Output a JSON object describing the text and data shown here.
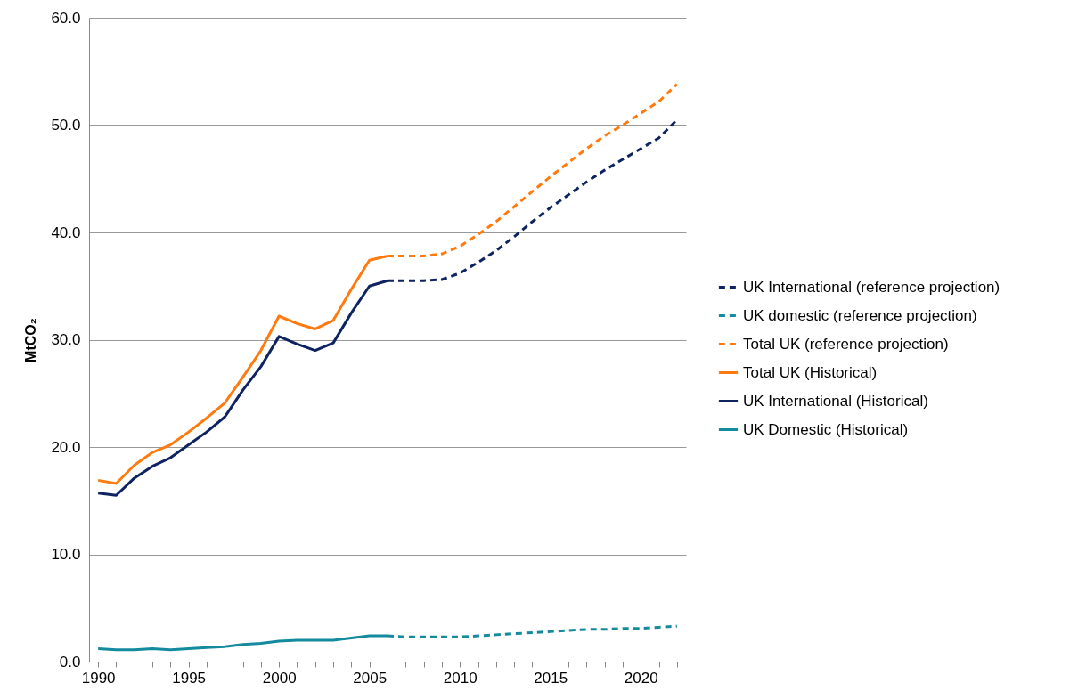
{
  "chart_data": {
    "type": "line",
    "ylabel": "MtCO₂",
    "xlim": [
      1989.5,
      2022.5
    ],
    "xticks": [
      1990,
      {
        "value": 1991,
        "label": null
      },
      {
        "value": 1992,
        "label": null
      },
      {
        "value": 1993,
        "label": null
      },
      {
        "value": 1994,
        "label": null
      },
      1995,
      {
        "value": 1996,
        "label": null
      },
      {
        "value": 1997,
        "label": null
      },
      {
        "value": 1998,
        "label": null
      },
      {
        "value": 1999,
        "label": null
      },
      2000,
      {
        "value": 2001,
        "label": null
      },
      {
        "value": 2002,
        "label": null
      },
      {
        "value": 2003,
        "label": null
      },
      {
        "value": 2004,
        "label": null
      },
      2005,
      {
        "value": 2006,
        "label": null
      },
      {
        "value": 2007,
        "label": null
      },
      {
        "value": 2008,
        "label": null
      },
      {
        "value": 2009,
        "label": null
      },
      2010,
      {
        "value": 2011,
        "label": null
      },
      {
        "value": 2012,
        "label": null
      },
      {
        "value": 2013,
        "label": null
      },
      {
        "value": 2014,
        "label": null
      },
      2015,
      {
        "value": 2016,
        "label": null
      },
      {
        "value": 2017,
        "label": null
      },
      {
        "value": 2018,
        "label": null
      },
      {
        "value": 2019,
        "label": null
      },
      2020,
      {
        "value": 2021,
        "label": null
      },
      {
        "value": 2022,
        "label": null
      }
    ],
    "ylim": [
      0,
      60
    ],
    "yticks": [
      {
        "value": 0,
        "label": "0.0"
      },
      {
        "value": 10,
        "label": "10.0"
      },
      {
        "value": 20,
        "label": "20.0"
      },
      {
        "value": 30,
        "label": "30.0"
      },
      {
        "value": 40,
        "label": "40.0"
      },
      {
        "value": 50,
        "label": "50.0"
      },
      {
        "value": 60,
        "label": "60.0"
      }
    ],
    "grid": "y",
    "legend": "right",
    "marker": "none",
    "series": [
      {
        "name": "UK International (reference projection)",
        "color": "#0e2460",
        "line_style": "dashed",
        "x": [
          2006,
          2007,
          2008,
          2009,
          2010,
          2011,
          2012,
          2013,
          2014,
          2015,
          2016,
          2017,
          2018,
          2019,
          2020,
          2021,
          2022
        ],
        "values": [
          35.5,
          35.5,
          35.5,
          35.6,
          36.2,
          37.2,
          38.3,
          39.6,
          41.0,
          42.3,
          43.5,
          44.7,
          45.8,
          46.8,
          47.8,
          48.8,
          50.5
        ]
      },
      {
        "name": "UK domestic (reference projection)",
        "color": "#138a9e",
        "line_style": "dashed",
        "x": [
          2006,
          2007,
          2008,
          2009,
          2010,
          2011,
          2012,
          2013,
          2014,
          2015,
          2016,
          2017,
          2018,
          2019,
          2020,
          2021,
          2022
        ],
        "values": [
          2.4,
          2.3,
          2.3,
          2.3,
          2.3,
          2.4,
          2.5,
          2.6,
          2.7,
          2.8,
          2.9,
          3.0,
          3.0,
          3.1,
          3.1,
          3.2,
          3.3
        ]
      },
      {
        "name": "Total UK (reference projection)",
        "color": "#ff7a0f",
        "line_style": "dashed",
        "x": [
          2006,
          2007,
          2008,
          2009,
          2010,
          2011,
          2012,
          2013,
          2014,
          2015,
          2016,
          2017,
          2018,
          2019,
          2020,
          2021,
          2022
        ],
        "values": [
          37.8,
          37.8,
          37.8,
          38.0,
          38.7,
          39.8,
          41.0,
          42.4,
          43.8,
          45.2,
          46.5,
          47.8,
          49.0,
          50.0,
          51.1,
          52.2,
          53.8
        ]
      },
      {
        "name": "Total UK (Historical)",
        "color": "#ff7a0f",
        "line_style": "solid",
        "x": [
          1990,
          1991,
          1992,
          1993,
          1994,
          1995,
          1996,
          1997,
          1998,
          1999,
          2000,
          2001,
          2002,
          2003,
          2004,
          2005,
          2006
        ],
        "values": [
          16.9,
          16.6,
          18.3,
          19.5,
          20.2,
          21.4,
          22.7,
          24.1,
          26.5,
          29.0,
          32.2,
          31.5,
          31.0,
          31.8,
          34.7,
          37.4,
          37.8
        ]
      },
      {
        "name": "UK International (Historical)",
        "color": "#0e2460",
        "line_style": "solid",
        "x": [
          1990,
          1991,
          1992,
          1993,
          1994,
          1995,
          1996,
          1997,
          1998,
          1999,
          2000,
          2001,
          2002,
          2003,
          2004,
          2005,
          2006
        ],
        "values": [
          15.7,
          15.5,
          17.1,
          18.2,
          19.0,
          20.2,
          21.4,
          22.8,
          25.3,
          27.5,
          30.3,
          29.6,
          29.0,
          29.7,
          32.5,
          35.0,
          35.5
        ]
      },
      {
        "name": "UK Domestic (Historical)",
        "color": "#138a9e",
        "line_style": "solid",
        "x": [
          1990,
          1991,
          1992,
          1993,
          1994,
          1995,
          1996,
          1997,
          1998,
          1999,
          2000,
          2001,
          2002,
          2003,
          2004,
          2005,
          2006
        ],
        "values": [
          1.2,
          1.1,
          1.1,
          1.2,
          1.1,
          1.2,
          1.3,
          1.4,
          1.6,
          1.7,
          1.9,
          2.0,
          2.0,
          2.0,
          2.2,
          2.4,
          2.4
        ]
      }
    ]
  }
}
